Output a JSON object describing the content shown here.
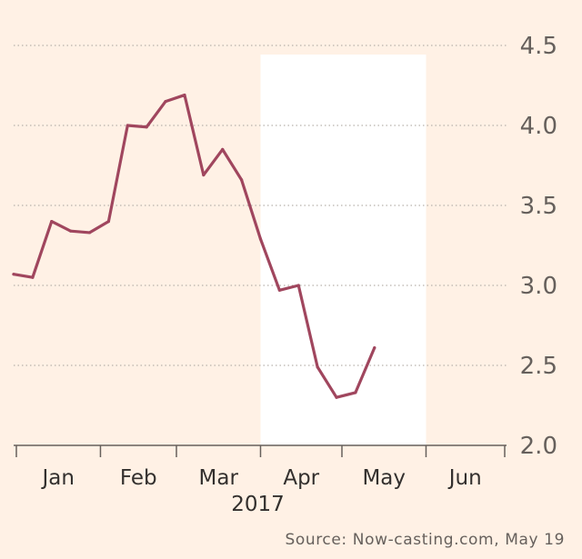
{
  "chart_data": {
    "type": "line",
    "title": "",
    "xlabel": "2017",
    "ylabel": "",
    "ylim": [
      2.0,
      4.5
    ],
    "yticks": [
      "4.5",
      "4.0",
      "3.5",
      "3.0",
      "2.5",
      "2.0"
    ],
    "y_axis_side": "right",
    "grid": "horizontal dotted",
    "xticks": [
      "Jan",
      "Feb",
      "Mar",
      "Apr",
      "May",
      "Jun"
    ],
    "year_label": "2017",
    "x_dates": [
      "2016-12-31",
      "2017-01-07",
      "2017-01-14",
      "2017-01-21",
      "2017-01-28",
      "2017-02-04",
      "2017-02-11",
      "2017-02-18",
      "2017-02-25",
      "2017-03-04",
      "2017-03-11",
      "2017-03-18",
      "2017-03-25",
      "2017-04-01",
      "2017-04-08",
      "2017-04-15",
      "2017-04-22",
      "2017-04-29",
      "2017-05-06",
      "2017-05-13",
      "2017-05-19"
    ],
    "series": [
      {
        "values": [
          3.07,
          3.05,
          3.4,
          3.34,
          3.33,
          3.4,
          4.0,
          3.99,
          4.15,
          4.19,
          3.69,
          3.85,
          3.66,
          3.29,
          2.97,
          3.0,
          2.49,
          2.3,
          2.33,
          2.61,
          null
        ]
      }
    ],
    "shaded_region": [
      "2017-04-01",
      "2017-06-01"
    ],
    "colors": {
      "line": "#a0465e",
      "background": "#fff1e5",
      "shaded": "#ffffff",
      "grid": "#b8b2ac",
      "axis": "#66605c"
    },
    "source": "Source: Now-casting.com, May 19"
  }
}
